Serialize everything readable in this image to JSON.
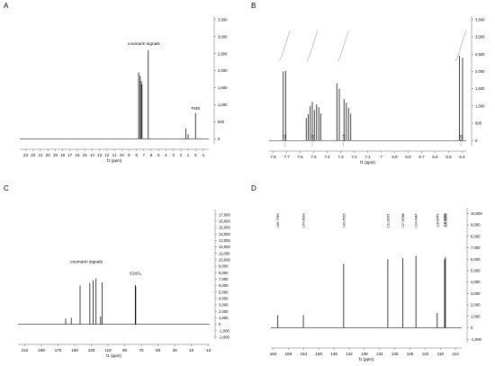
{
  "chart_data": [
    {
      "panel": "A",
      "type": "line",
      "xlabel": "f1 (ppm)",
      "xlim": [
        23.8,
        -1.8
      ],
      "ylim": [
        -150,
        3600
      ],
      "x_ticks": [
        23,
        22,
        21,
        20,
        19,
        18,
        17,
        16,
        15,
        14,
        13,
        12,
        11,
        10,
        9,
        8,
        7,
        6,
        5,
        4,
        3,
        2,
        1,
        0,
        -1
      ],
      "y_ticks": [
        0,
        500,
        1000,
        1500,
        2000,
        2500,
        3000,
        3500
      ],
      "y_tick_labels": [
        "0",
        "500",
        "1,000",
        "1,500",
        "2,000",
        "2,500",
        "3,000",
        "3,500"
      ],
      "peaks": [
        {
          "x": 7.7,
          "y": 1950
        },
        {
          "x": 7.5,
          "y": 1850
        },
        {
          "x": 7.35,
          "y": 1700
        },
        {
          "x": 7.25,
          "y": 1600
        },
        {
          "x": 6.4,
          "y": 2600
        },
        {
          "x": 1.3,
          "y": 300
        },
        {
          "x": 1.0,
          "y": 130
        },
        {
          "x": 0.0,
          "y": 760
        }
      ],
      "annotations": [
        {
          "text": "coumarin signals",
          "x": 7.0,
          "y": 2750
        },
        {
          "text": "TMS",
          "x": 0.0,
          "y": 850
        }
      ]
    },
    {
      "panel": "B",
      "type": "line",
      "xlabel": "f1 (ppm)",
      "xlim": [
        7.83,
        6.37
      ],
      "ylim": [
        -150,
        3600
      ],
      "x_ticks": [
        7.8,
        7.7,
        7.6,
        7.5,
        7.4,
        7.3,
        7.2,
        7.1,
        7.0,
        6.9,
        6.8,
        6.7,
        6.6,
        6.5,
        6.4
      ],
      "y_ticks": [
        0,
        500,
        1000,
        1500,
        2000,
        2500,
        3000,
        3500
      ],
      "y_tick_labels": [
        "0",
        "500",
        "1,000",
        "1,500",
        "2,000",
        "2,500",
        "3,000",
        "3,500"
      ],
      "peaks": [
        {
          "x": 7.725,
          "y": 2000
        },
        {
          "x": 7.708,
          "y": 2020
        },
        {
          "x": 7.555,
          "y": 650
        },
        {
          "x": 7.54,
          "y": 760
        },
        {
          "x": 7.525,
          "y": 1000
        },
        {
          "x": 7.51,
          "y": 1120
        },
        {
          "x": 7.495,
          "y": 880
        },
        {
          "x": 7.478,
          "y": 1050
        },
        {
          "x": 7.462,
          "y": 960
        },
        {
          "x": 7.448,
          "y": 780
        },
        {
          "x": 7.328,
          "y": 1650
        },
        {
          "x": 7.31,
          "y": 1500
        },
        {
          "x": 7.275,
          "y": 1200
        },
        {
          "x": 7.258,
          "y": 1100
        },
        {
          "x": 7.242,
          "y": 950
        },
        {
          "x": 7.225,
          "y": 780
        },
        {
          "x": 6.42,
          "y": 2450
        },
        {
          "x": 6.397,
          "y": 2400
        }
      ],
      "integrals": [
        {
          "text": "1.00",
          "x": 7.715
        },
        {
          "text": "2.02",
          "x": 7.51
        },
        {
          "text": "2.13",
          "x": 7.28
        },
        {
          "text": "0.95",
          "x": 6.41
        }
      ]
    },
    {
      "panel": "C",
      "type": "line",
      "xlabel": "f1 (ppm)",
      "xlim": [
        218,
        -12
      ],
      "ylim": [
        -2300,
        17800
      ],
      "x_ticks": [
        210,
        190,
        170,
        150,
        130,
        110,
        90,
        70,
        50,
        30,
        10,
        -10
      ],
      "y_ticks": [
        -2000,
        -1000,
        0,
        1000,
        2000,
        3000,
        4000,
        5000,
        6000,
        7000,
        8000,
        9000,
        10000,
        11000,
        12000,
        13000,
        14000,
        15000,
        16000,
        17000
      ],
      "y_tick_labels": [
        "-2,000",
        "-1,000",
        "0",
        "1,000",
        "2,000",
        "3,000",
        "4,000",
        "5,000",
        "6,000",
        "7,000",
        "8,000",
        "9,000",
        "10,000",
        "11,000",
        "12,000",
        "13,000",
        "14,000",
        "15,000",
        "16,000",
        "17,000"
      ],
      "peaks": [
        {
          "x": 160.8,
          "y": 900
        },
        {
          "x": 154.1,
          "y": 1000
        },
        {
          "x": 143.5,
          "y": 6000
        },
        {
          "x": 131.8,
          "y": 6400
        },
        {
          "x": 127.9,
          "y": 6800
        },
        {
          "x": 124.4,
          "y": 7100
        },
        {
          "x": 118.9,
          "y": 1200
        },
        {
          "x": 116.9,
          "y": 6500
        },
        {
          "x": 77.3,
          "y": 5800
        },
        {
          "x": 77.0,
          "y": 6100
        },
        {
          "x": 76.7,
          "y": 5800
        }
      ],
      "annotations": [
        {
          "text": "coumarin signals",
          "x": 136,
          "y": 9500
        },
        {
          "text": "CDCl₃",
          "x": 77,
          "y": 7700
        }
      ]
    },
    {
      "panel": "D",
      "type": "line",
      "xlabel": "f1 (ppm)",
      "xlim": [
        162.6,
        112.4
      ],
      "ylim": [
        -1300,
        10500
      ],
      "x_ticks": [
        162,
        158,
        154,
        150,
        146,
        142,
        138,
        134,
        130,
        126,
        122,
        118,
        114
      ],
      "y_ticks": [
        -1000,
        0,
        1000,
        2000,
        3000,
        4000,
        5000,
        6000,
        7000,
        8000,
        9000,
        10000
      ],
      "y_tick_labels": [
        "-1,000",
        "0",
        "1,000",
        "2,000",
        "3,000",
        "4,000",
        "5,000",
        "6,000",
        "7,000",
        "8,000",
        "9,000",
        "10,000"
      ],
      "peaks": [
        {
          "x": 160.7793,
          "y": 1100
        },
        {
          "x": 154.061,
          "y": 1100
        },
        {
          "x": 143.4512,
          "y": 5600
        },
        {
          "x": 131.8371,
          "y": 6000
        },
        {
          "x": 127.8768,
          "y": 6100
        },
        {
          "x": 124.4347,
          "y": 6300
        },
        {
          "x": 118.8441,
          "y": 1300
        },
        {
          "x": 116.8858,
          "y": 6000
        },
        {
          "x": 116.6863,
          "y": 6200
        }
      ],
      "peak_labels": [
        "160.7793",
        "154.0610",
        "143.4512",
        "131.8371",
        "127.8768",
        "124.4347",
        "118.8441",
        "116.8858",
        "116.6863"
      ],
      "peak_labels_y": 10000
    }
  ],
  "panels": {
    "a": {
      "label": "A"
    },
    "b": {
      "label": "B"
    },
    "c": {
      "label": "C"
    },
    "d": {
      "label": "D"
    }
  }
}
